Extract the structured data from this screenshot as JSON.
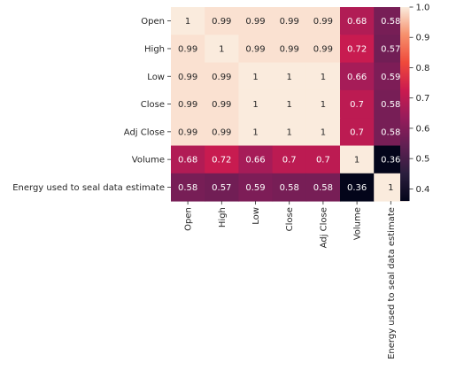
{
  "chart_data": {
    "type": "heatmap",
    "title": "",
    "xlabel": "",
    "ylabel": "",
    "row_labels": [
      "Open",
      "High",
      "Low",
      "Close",
      "Adj Close",
      "Volume",
      "Energy used to seal data estimate"
    ],
    "col_labels": [
      "Open",
      "High",
      "Low",
      "Close",
      "Adj Close",
      "Volume",
      "Energy used to seal data estimate"
    ],
    "values": [
      [
        1,
        0.99,
        0.99,
        0.99,
        0.99,
        0.68,
        0.58
      ],
      [
        0.99,
        1,
        0.99,
        0.99,
        0.99,
        0.72,
        0.57
      ],
      [
        0.99,
        0.99,
        1,
        1,
        1,
        0.66,
        0.59
      ],
      [
        0.99,
        0.99,
        1,
        1,
        1,
        0.7,
        0.58
      ],
      [
        0.99,
        0.99,
        1,
        1,
        1,
        0.7,
        0.58
      ],
      [
        0.68,
        0.72,
        0.66,
        0.7,
        0.7,
        1,
        0.36
      ],
      [
        0.58,
        0.57,
        0.59,
        0.58,
        0.58,
        0.36,
        1
      ]
    ],
    "annot": [
      [
        "1",
        "0.99",
        "0.99",
        "0.99",
        "0.99",
        "0.68",
        "0.58"
      ],
      [
        "0.99",
        "1",
        "0.99",
        "0.99",
        "0.99",
        "0.72",
        "0.57"
      ],
      [
        "0.99",
        "0.99",
        "1",
        "1",
        "1",
        "0.66",
        "0.59"
      ],
      [
        "0.99",
        "0.99",
        "1",
        "1",
        "1",
        "0.7",
        "0.58"
      ],
      [
        "0.99",
        "0.99",
        "1",
        "1",
        "1",
        "0.7",
        "0.58"
      ],
      [
        "0.68",
        "0.72",
        "0.66",
        "0.7",
        "0.7",
        "1",
        "0.36"
      ],
      [
        "0.58",
        "0.57",
        "0.59",
        "0.58",
        "0.58",
        "0.36",
        "1"
      ]
    ],
    "colorbar": {
      "vmin": 0.36,
      "vmax": 1.0,
      "ticks": [
        0.4,
        0.5,
        0.6,
        0.7,
        0.8,
        0.9,
        1.0
      ],
      "tick_labels": [
        "0.4",
        "0.5",
        "0.6",
        "0.7",
        "0.8",
        "0.9",
        "1.0"
      ],
      "colormap": "rocket",
      "colormap_stops": [
        "#03051a",
        "#2c1e3e",
        "#611f53",
        "#971c5b",
        "#cb1b4f",
        "#ef4a3b",
        "#f6906c",
        "#faebdd"
      ]
    },
    "legend": "none",
    "grid": false
  }
}
